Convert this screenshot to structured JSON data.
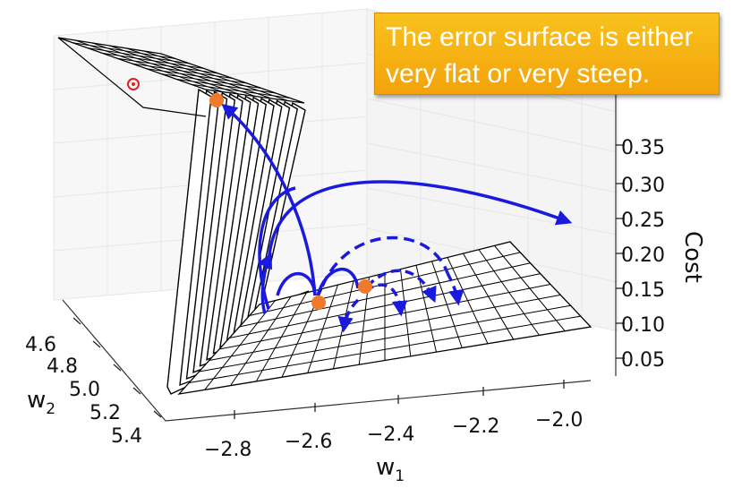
{
  "callout": {
    "text": "The error surface is either very flat or very steep."
  },
  "axes": {
    "cost_label": "Cost",
    "w1_label": "w",
    "w1_sub": "1",
    "w2_label": "w",
    "w2_sub": "2",
    "cost_ticks": [
      "0.35",
      "0.30",
      "0.25",
      "0.20",
      "0.15",
      "0.10",
      "0.05"
    ],
    "w1_ticks": [
      "−2.8",
      "−2.6",
      "−2.4",
      "−2.2",
      "−2.0"
    ],
    "w2_ticks": [
      "4.6",
      "4.8",
      "5.0",
      "5.2",
      "5.4"
    ]
  },
  "colors": {
    "arrow": "#1a1adf",
    "point": "#f07a2a",
    "surface": "#000000",
    "highlight": "#e02020"
  }
}
